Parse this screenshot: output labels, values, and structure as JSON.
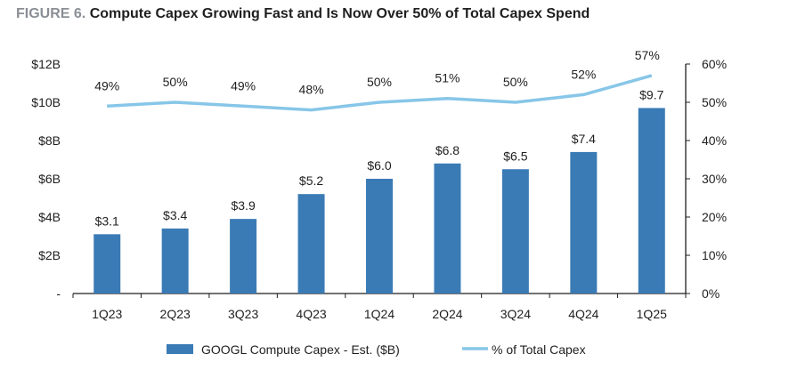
{
  "figure": {
    "label": "FIGURE 6.",
    "title": "Compute Capex Growing Fast and Is Now Over 50% of Total Capex Spend"
  },
  "chart_data": {
    "type": "bar",
    "categories": [
      "1Q23",
      "2Q23",
      "3Q23",
      "4Q23",
      "1Q24",
      "2Q24",
      "3Q24",
      "4Q24",
      "1Q25"
    ],
    "series": [
      {
        "name": "GOOGL Compute Capex - Est. ($B)",
        "type": "bar",
        "axis": "left",
        "color": "#3a7bb5",
        "values": [
          3.1,
          3.4,
          3.9,
          5.2,
          6.0,
          6.8,
          6.5,
          7.4,
          9.7
        ],
        "labels": [
          "$3.1",
          "$3.4",
          "$3.9",
          "$5.2",
          "$6.0",
          "$6.8",
          "$6.5",
          "$7.4",
          "$9.7"
        ]
      },
      {
        "name": "% of Total Capex",
        "type": "line",
        "axis": "right",
        "color": "#87c6e8",
        "values": [
          49,
          50,
          49,
          48,
          50,
          51,
          50,
          52,
          57
        ],
        "labels": [
          "49%",
          "50%",
          "49%",
          "48%",
          "50%",
          "51%",
          "50%",
          "52%",
          "57%"
        ]
      }
    ],
    "y_left": {
      "range": [
        0,
        12
      ],
      "ticks": [
        0,
        2,
        4,
        6,
        8,
        10,
        12
      ],
      "tick_labels": [
        "-",
        "$2B",
        "$4B",
        "$6B",
        "$8B",
        "$10B",
        "$12B"
      ]
    },
    "y_right": {
      "range": [
        0,
        60
      ],
      "ticks": [
        0,
        10,
        20,
        30,
        40,
        50,
        60
      ],
      "tick_labels": [
        "0%",
        "10%",
        "20%",
        "30%",
        "40%",
        "50%",
        "60%"
      ]
    },
    "grid": false,
    "legend": "bottom"
  }
}
